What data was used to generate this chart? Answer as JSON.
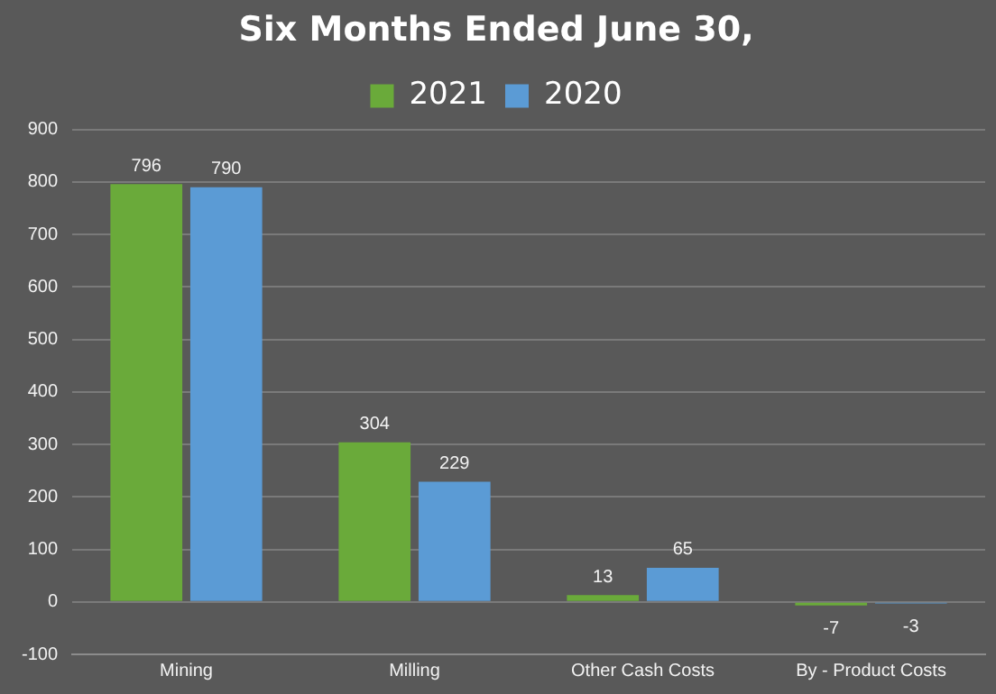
{
  "chart_data": {
    "type": "bar",
    "title": "Six Months Ended June 30,",
    "categories": [
      "Mining",
      "Milling",
      "Other Cash Costs",
      "By - Product Costs"
    ],
    "series": [
      {
        "name": "2021",
        "color": "#6aaa3a",
        "values": [
          796,
          304,
          13,
          -7
        ]
      },
      {
        "name": "2020",
        "color": "#5b9bd5",
        "values": [
          790,
          229,
          65,
          -3
        ]
      }
    ],
    "ylim": [
      -100,
      900
    ],
    "yticks": [
      -100,
      0,
      100,
      200,
      300,
      400,
      500,
      600,
      700,
      800,
      900
    ],
    "grid": "y",
    "legend": "top",
    "data_labels": true
  }
}
